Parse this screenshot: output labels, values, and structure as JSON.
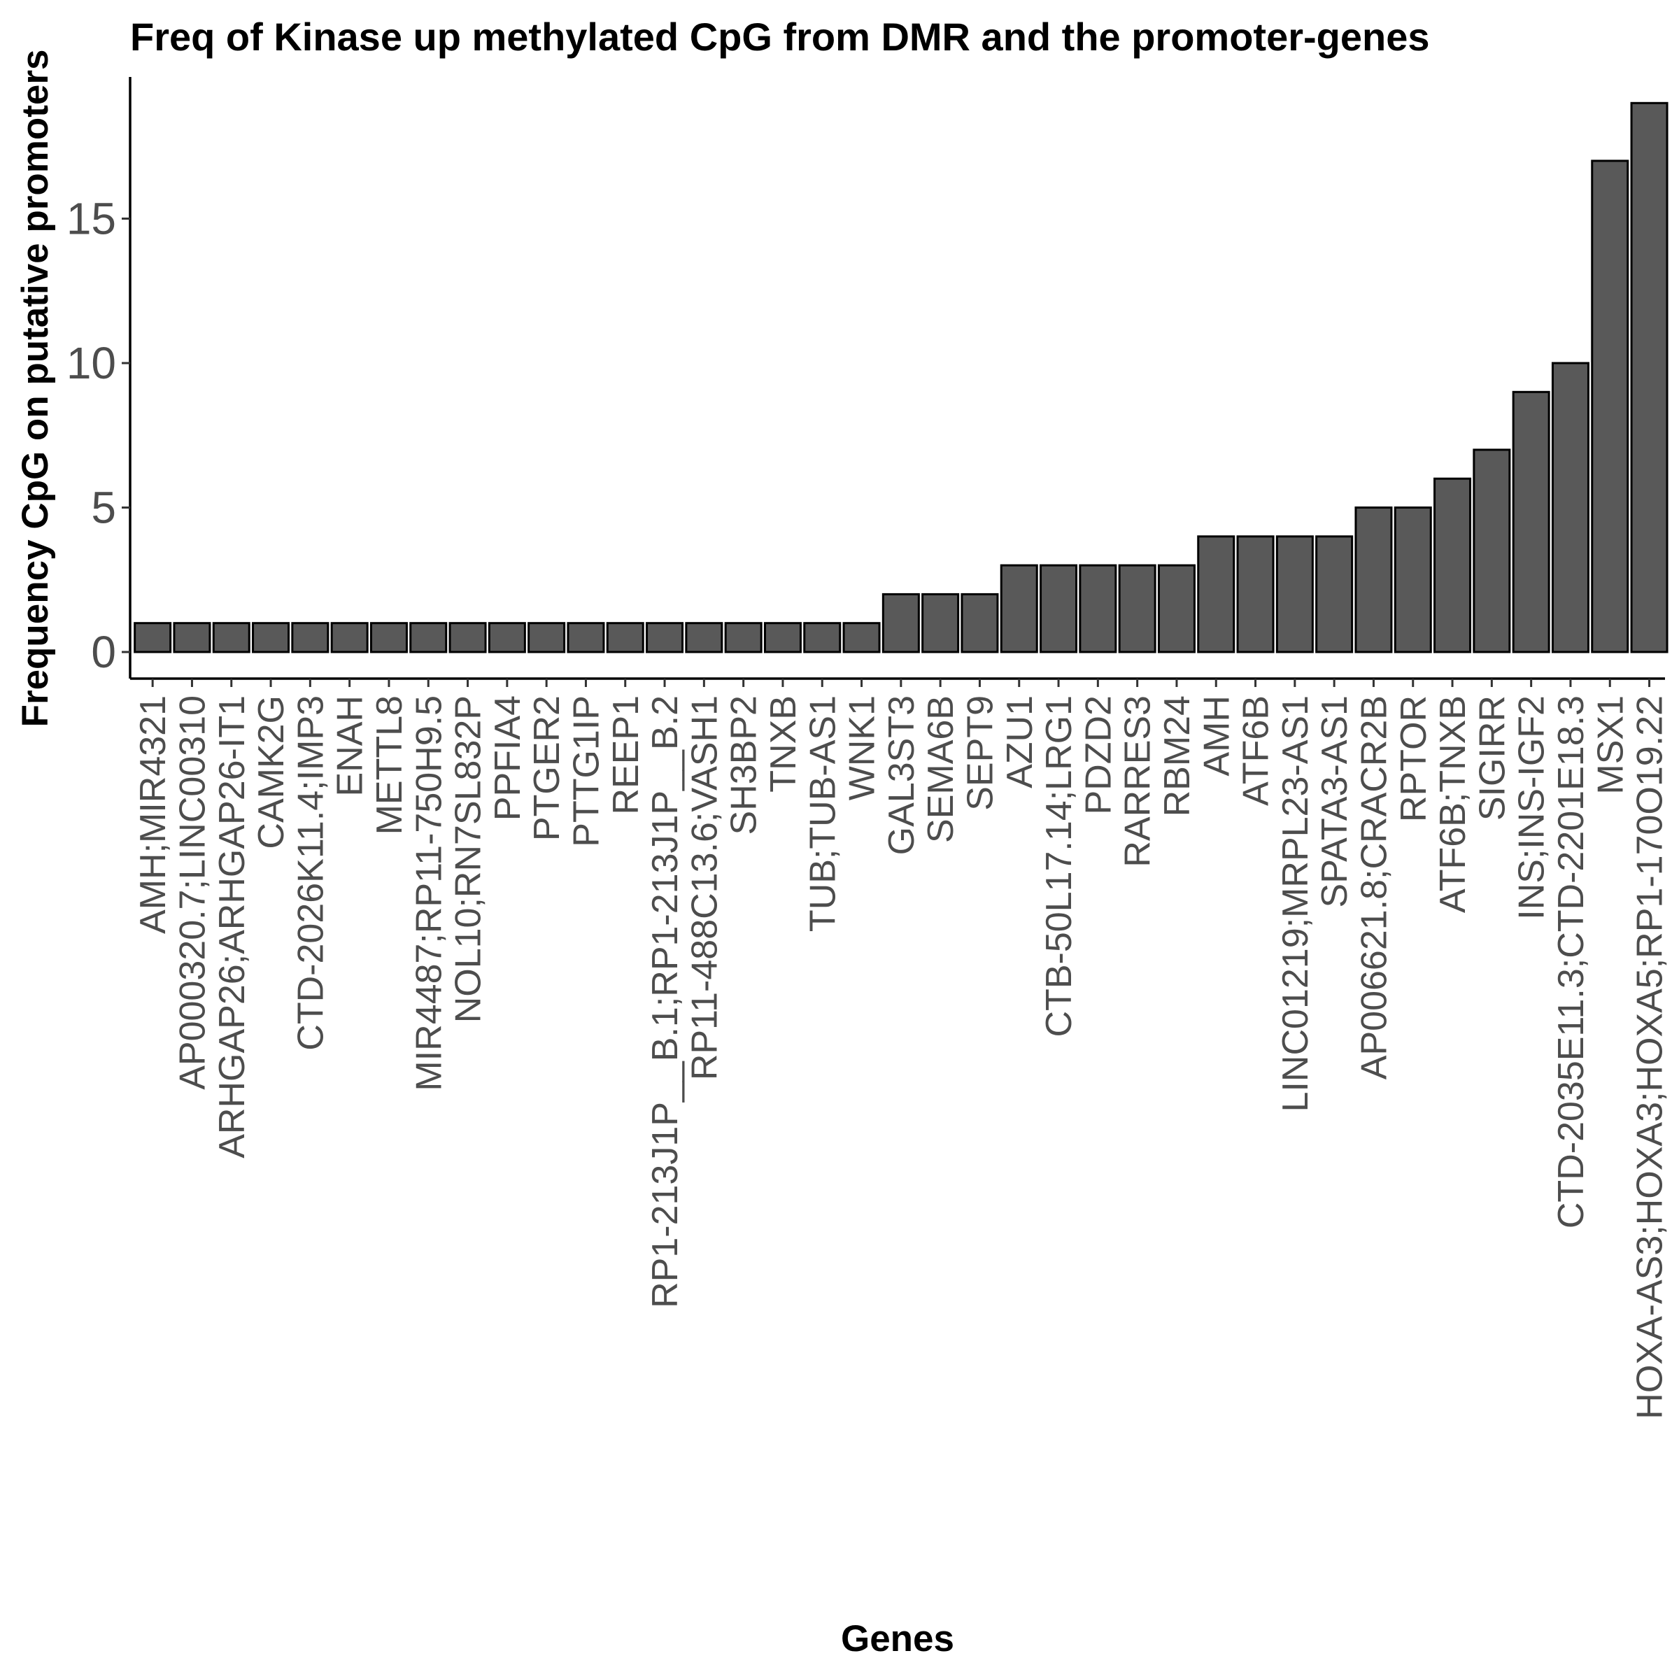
{
  "chart_data": {
    "type": "bar",
    "title": "Freq of Kinase up methylated CpG from DMR and the promoter-genes",
    "xlabel": "Genes",
    "ylabel": "Frequency CpG on putative promoters",
    "ylim": [
      0,
      20
    ],
    "yticks": [
      0,
      5,
      10,
      15
    ],
    "grid": false,
    "categories": [
      "AMH;MIR4321",
      "AP000320.7;LINC00310",
      "ARHGAP26;ARHGAP26-IT1",
      "CAMK2G",
      "CTD-2026K11.4;IMP3",
      "ENAH",
      "METTL8",
      "MIR4487;RP11-750H9.5",
      "NOL10;RN7SL832P",
      "PPFIA4",
      "PTGER2",
      "PTTG1IP",
      "REEP1",
      "RP1-213J1P__B.1;RP1-213J1P__B.2",
      "RP11-488C13.6;VASH1",
      "SH3BP2",
      "TNXB",
      "TUB;TUB-AS1",
      "WNK1",
      "GAL3ST3",
      "SEMA6B",
      "SEPT9",
      "AZU1",
      "CTB-50L17.14;LRG1",
      "PDZD2",
      "RARRES3",
      "RBM24",
      "AMH",
      "ATF6B",
      "LINC01219;MRPL23-AS1",
      "SPATA3-AS1",
      "AP006621.8;CRACR2B",
      "RPTOR",
      "ATF6B;TNXB",
      "SIGIRR",
      "INS;INS-IGF2",
      "CTD-2035E11.3;CTD-2201E18.3",
      "MSX1",
      "HOXA-AS3;HOXA3;HOXA5;RP1-170O19.22"
    ],
    "values": [
      1,
      1,
      1,
      1,
      1,
      1,
      1,
      1,
      1,
      1,
      1,
      1,
      1,
      1,
      1,
      1,
      1,
      1,
      1,
      2,
      2,
      2,
      3,
      3,
      3,
      3,
      3,
      4,
      4,
      4,
      4,
      5,
      5,
      6,
      7,
      9,
      10,
      17,
      19
    ]
  }
}
